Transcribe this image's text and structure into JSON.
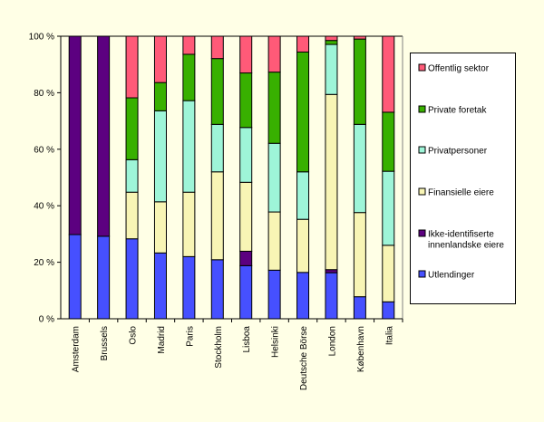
{
  "chart_data": {
    "type": "bar",
    "stacked": true,
    "percent_stacked": true,
    "title": "",
    "xlabel": "",
    "ylabel": "",
    "ylim": [
      0,
      100
    ],
    "yticks": [
      "0 %",
      "20 %",
      "40 %",
      "60 %",
      "80 %",
      "100 %"
    ],
    "legend_position": "right",
    "categories": [
      "Amsterdam",
      "Brussels",
      "Oslo",
      "Madrid",
      "Paris",
      "Stockholm",
      "Lisboa",
      "Helsinki",
      "Deutsche Börse",
      "London",
      "København",
      "Italia"
    ],
    "series": [
      {
        "name": "Utlendinger",
        "color": "#4650FF",
        "values": [
          29.8,
          29.2,
          28.3,
          23.3,
          22.0,
          20.9,
          18.8,
          17.2,
          16.4,
          16.3,
          7.8,
          6.0
        ]
      },
      {
        "name": "Ikke-identifiserte innenlandske eiere",
        "color": "#5C0080",
        "values": [
          70.2,
          70.8,
          0,
          0,
          0,
          0,
          5.1,
          0,
          0,
          1.1,
          0,
          0
        ]
      },
      {
        "name": "Finansielle eiere",
        "color": "#F8F5B5",
        "values": [
          0,
          0,
          16.5,
          18.1,
          22.8,
          31.1,
          24.4,
          20.6,
          18.8,
          62.0,
          29.8,
          20.0
        ]
      },
      {
        "name": "Privatpersoner",
        "color": "#9EF5D8",
        "values": [
          0,
          0,
          11.5,
          32.2,
          32.4,
          16.8,
          19.4,
          24.3,
          16.8,
          17.7,
          31.2,
          26.2
        ]
      },
      {
        "name": "Private foretak",
        "color": "#38B000",
        "values": [
          0,
          0,
          21.9,
          10.0,
          16.4,
          23.3,
          19.3,
          25.2,
          42.4,
          1.4,
          30.2,
          20.9
        ]
      },
      {
        "name": "Offentlig sektor",
        "color": "#FF5A78",
        "values": [
          0,
          0,
          21.8,
          16.4,
          6.4,
          7.9,
          13.0,
          12.7,
          5.6,
          1.5,
          1.0,
          26.9
        ]
      }
    ],
    "legend_lines": {
      "Ikke-identifiserte innenlandske eiere": [
        "Ikke-identifiserte",
        "innenlandske eiere"
      ]
    }
  }
}
